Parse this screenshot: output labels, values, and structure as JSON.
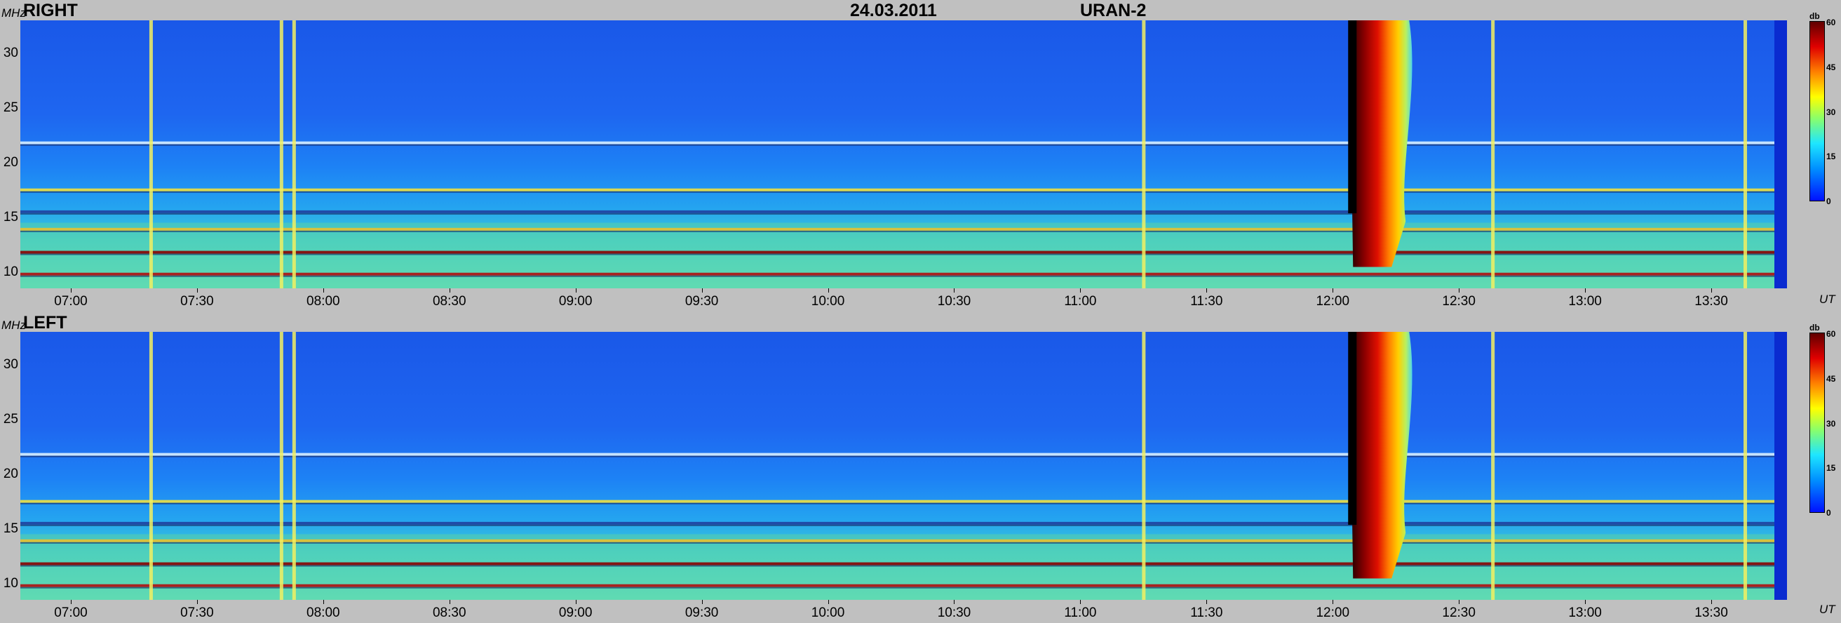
{
  "header": {
    "date": "24.03.2011",
    "instrument": "URAN-2"
  },
  "y_unit": "MHz",
  "x_unit": "UT",
  "colorbar": {
    "unit": "db",
    "ticks": [
      "60",
      "45",
      "30",
      "15",
      "0"
    ]
  },
  "chart_data": [
    {
      "type": "heatmap",
      "title": "RIGHT",
      "xlabel": "UT",
      "ylabel": "MHz",
      "ylim": [
        8.5,
        33
      ],
      "xlim": [
        "06:48",
        "13:48"
      ],
      "y_ticks": [
        "30",
        "25",
        "20",
        "15",
        "10"
      ],
      "y_tick_values": [
        30,
        25,
        20,
        15,
        10
      ],
      "x_ticks": [
        "07:00",
        "07:30",
        "08:00",
        "08:30",
        "09:00",
        "09:30",
        "10:00",
        "10:30",
        "11:00",
        "11:30",
        "12:00",
        "12:30",
        "13:00",
        "13:30"
      ],
      "colorbar": {
        "unit": "db",
        "range": [
          0,
          60
        ]
      },
      "features": {
        "burst_time": "12:04",
        "burst_freq_range": [
          11,
          33
        ],
        "burst_peak_db": 60,
        "vertical_bursts": [
          "07:19",
          "07:50",
          "07:53",
          "11:15",
          "12:38",
          "13:38"
        ],
        "horizontal_bands_mhz": [
          9.8,
          11.8,
          13.9,
          15.5,
          17.5,
          21.8
        ]
      }
    },
    {
      "type": "heatmap",
      "title": "LEFT",
      "xlabel": "UT",
      "ylabel": "MHz",
      "ylim": [
        8.5,
        33
      ],
      "xlim": [
        "06:48",
        "13:48"
      ],
      "y_ticks": [
        "30",
        "25",
        "20",
        "15",
        "10"
      ],
      "y_tick_values": [
        30,
        25,
        20,
        15,
        10
      ],
      "x_ticks": [
        "07:00",
        "07:30",
        "08:00",
        "08:30",
        "09:00",
        "09:30",
        "10:00",
        "10:30",
        "11:00",
        "11:30",
        "12:00",
        "12:30",
        "13:00",
        "13:30"
      ],
      "colorbar": {
        "unit": "db",
        "range": [
          0,
          60
        ]
      },
      "features": {
        "burst_time": "12:04",
        "burst_freq_range": [
          11,
          33
        ],
        "burst_peak_db": 60,
        "vertical_bursts": [
          "07:19",
          "07:50",
          "07:53",
          "11:15",
          "12:38",
          "13:38"
        ],
        "horizontal_bands_mhz": [
          9.8,
          11.8,
          13.9,
          15.5,
          17.5,
          21.8
        ]
      }
    }
  ]
}
